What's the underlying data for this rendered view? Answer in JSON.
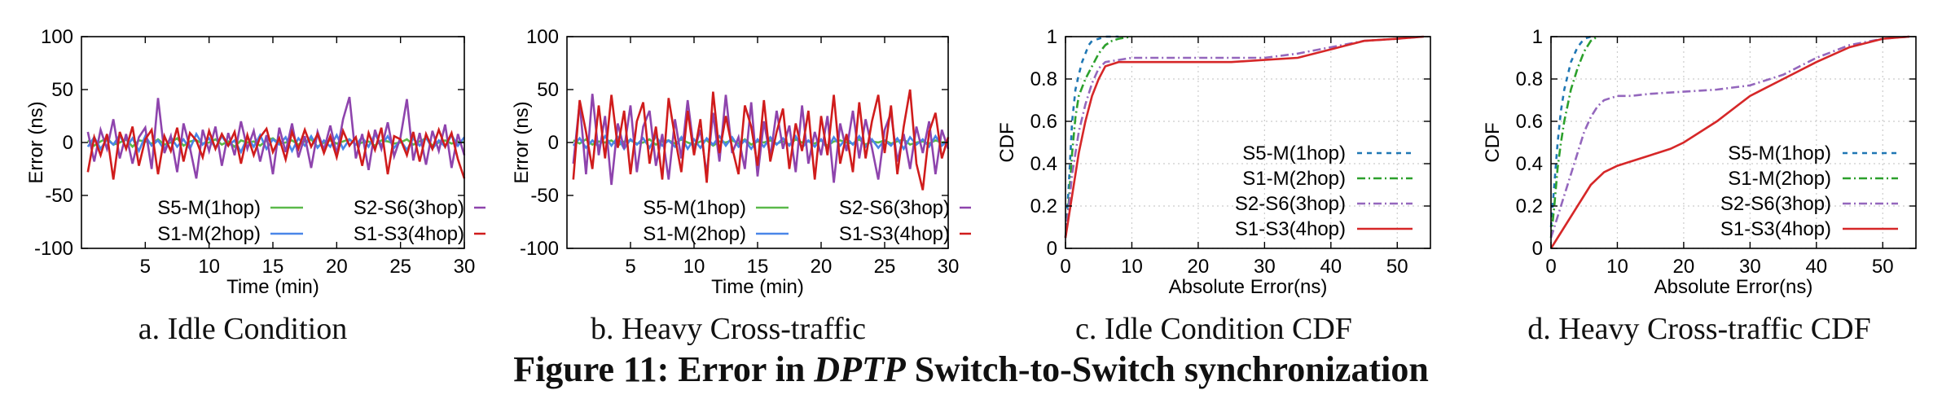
{
  "figure": {
    "label": "Figure 11:",
    "prefix": "Error in",
    "emph": "DPTP",
    "suffix": "Switch-to-Switch synchronization"
  },
  "colors": {
    "S5-M(1hop)": "#1f77b4",
    "S1-M(2hop)": "#2ca02c",
    "S2-S6(3hop)": "#9467bd",
    "S1-S3(4hop)": "#d62728",
    "ts_S5M": "#5ab94a",
    "ts_S1M": "#4a86e8",
    "ts_S2S6": "#8e44ad",
    "ts_S1S3": "#d01c1c"
  },
  "chart_data": [
    {
      "type": "line",
      "caption": "a. Idle Condition",
      "xlabel": "Time (min)",
      "ylabel": "Error (ns)",
      "xlim": [
        0,
        30
      ],
      "ylim": [
        -100,
        100
      ],
      "xticks": [
        5,
        10,
        15,
        20,
        25,
        30
      ],
      "yticks": [
        -100,
        -50,
        0,
        50,
        100
      ],
      "grid": false,
      "legend_position": "bottom",
      "legend_columns": 2,
      "x": [
        0.5,
        1,
        1.5,
        2,
        2.5,
        3,
        3.5,
        4,
        4.5,
        5,
        5.5,
        6,
        6.5,
        7,
        7.5,
        8,
        8.5,
        9,
        9.5,
        10,
        10.5,
        11,
        11.5,
        12,
        12.5,
        13,
        13.5,
        14,
        14.5,
        15,
        15.5,
        16,
        16.5,
        17,
        17.5,
        18,
        18.5,
        19,
        19.5,
        20,
        20.5,
        21,
        21.5,
        22,
        22.5,
        23,
        23.5,
        24,
        24.5,
        25,
        25.5,
        26,
        26.5,
        27,
        27.5,
        28,
        28.5,
        29,
        29.5,
        30
      ],
      "series": [
        {
          "name": "S5-M(1hop)",
          "values": [
            2,
            -3,
            1,
            4,
            -2,
            0,
            3,
            -4,
            2,
            1,
            -1,
            3,
            -2,
            0,
            4,
            -3,
            1,
            2,
            -1,
            0,
            3,
            -2,
            1,
            -4,
            2,
            0,
            1,
            -3,
            2,
            4,
            -1,
            0,
            2,
            -2,
            1,
            3,
            -4,
            0,
            2,
            -1,
            1,
            3,
            -2,
            0,
            1,
            -3,
            2,
            1,
            -1,
            0,
            3,
            -2,
            1,
            4,
            -3,
            0,
            2,
            -1,
            1,
            0
          ]
        },
        {
          "name": "S1-M(2hop)",
          "values": [
            -4,
            5,
            -6,
            3,
            -2,
            7,
            -5,
            4,
            -8,
            6,
            -3,
            2,
            -7,
            5,
            -4,
            3,
            -6,
            8,
            -2,
            4,
            -5,
            6,
            -3,
            2,
            -9,
            5,
            -4,
            7,
            -6,
            3,
            -2,
            5,
            -8,
            4,
            -3,
            6,
            -5,
            2,
            -4,
            7,
            -6,
            3,
            -2,
            5,
            -4,
            8,
            -3,
            6,
            -5,
            2,
            -7,
            4,
            -3,
            5,
            -6,
            2,
            -4,
            7,
            -3,
            5
          ]
        },
        {
          "name": "S2-S6(3hop)",
          "values": [
            10,
            -18,
            12,
            -6,
            22,
            -15,
            8,
            -20,
            5,
            14,
            -25,
            42,
            -10,
            6,
            -28,
            18,
            -5,
            -34,
            12,
            -8,
            15,
            -22,
            9,
            -12,
            20,
            -6,
            11,
            -18,
            7,
            -30,
            14,
            -9,
            18,
            -14,
            6,
            -24,
            10,
            -7,
            16,
            -11,
            22,
            43,
            -15,
            8,
            -26,
            12,
            -6,
            19,
            -13,
            5,
            41,
            -17,
            9,
            -21,
            11,
            -8,
            17,
            -24,
            8,
            -12
          ]
        },
        {
          "name": "S1-S3(4hop)",
          "values": [
            -28,
            5,
            -12,
            8,
            -35,
            10,
            -6,
            15,
            -22,
            3,
            12,
            -30,
            6,
            -8,
            14,
            -18,
            9,
            2,
            -14,
            11,
            -6,
            8,
            -3,
            10,
            -20,
            7,
            -12,
            5,
            13,
            -9,
            4,
            -16,
            10,
            -6,
            12,
            -4,
            8,
            -10,
            6,
            -14,
            11,
            -3,
            5,
            -22,
            9,
            -7,
            14,
            -30,
            6,
            3,
            -12,
            10,
            -18,
            8,
            -6,
            12,
            -4,
            9,
            -16,
            -34
          ]
        }
      ]
    },
    {
      "type": "line",
      "caption": "b. Heavy Cross-traffic",
      "xlabel": "Time (min)",
      "ylabel": "Error (ns)",
      "xlim": [
        0,
        30
      ],
      "ylim": [
        -100,
        100
      ],
      "xticks": [
        5,
        10,
        15,
        20,
        25,
        30
      ],
      "yticks": [
        -100,
        -50,
        0,
        50,
        100
      ],
      "grid": false,
      "legend_position": "bottom",
      "legend_columns": 2,
      "x": [
        0.5,
        1,
        1.5,
        2,
        2.5,
        3,
        3.5,
        4,
        4.5,
        5,
        5.5,
        6,
        6.5,
        7,
        7.5,
        8,
        8.5,
        9,
        9.5,
        10,
        10.5,
        11,
        11.5,
        12,
        12.5,
        13,
        13.5,
        14,
        14.5,
        15,
        15.5,
        16,
        16.5,
        17,
        17.5,
        18,
        18.5,
        19,
        19.5,
        20,
        20.5,
        21,
        21.5,
        22,
        22.5,
        23,
        23.5,
        24,
        24.5,
        25,
        25.5,
        26,
        26.5,
        27,
        27.5,
        28,
        28.5,
        29,
        29.5,
        30
      ],
      "series": [
        {
          "name": "S5-M(1hop)",
          "values": [
            2,
            -1,
            3,
            -2,
            1,
            0,
            2,
            -3,
            1,
            2,
            -1,
            0,
            3,
            -2,
            1,
            2,
            -1,
            3,
            0,
            -2,
            1,
            2,
            -3,
            1,
            0,
            2,
            -1,
            3,
            -2,
            1,
            0,
            2,
            -1,
            1,
            -2,
            3,
            0,
            1,
            -1,
            2,
            -3,
            1,
            2,
            0,
            -1,
            3,
            -2,
            1,
            0,
            2,
            -1,
            1,
            3,
            -2,
            0,
            1,
            -1,
            2,
            0,
            1
          ]
        },
        {
          "name": "S1-M(2hop)",
          "values": [
            -3,
            4,
            -5,
            2,
            -4,
            6,
            -3,
            5,
            -6,
            3,
            -2,
            4,
            -5,
            6,
            -3,
            2,
            -4,
            5,
            -6,
            3,
            -5,
            4,
            -2,
            6,
            -3,
            5,
            -4,
            2,
            -6,
            3,
            -4,
            5,
            -2,
            4,
            -3,
            6,
            -5,
            2,
            -4,
            3,
            -6,
            5,
            -3,
            4,
            -2,
            6,
            -4,
            3,
            -5,
            2,
            -3,
            4,
            -6,
            5,
            -2,
            3,
            -4,
            6,
            -3,
            2
          ]
        },
        {
          "name": "S2-S6(3hop)",
          "values": [
            -20,
            38,
            -30,
            46,
            -12,
            25,
            -40,
            18,
            -6,
            35,
            -28,
            15,
            30,
            -22,
            8,
            -35,
            22,
            -15,
            40,
            -8,
            12,
            -30,
            28,
            -18,
            45,
            -10,
            5,
            -25,
            38,
            -32,
            20,
            -14,
            30,
            -6,
            16,
            -28,
            35,
            -20,
            10,
            -12,
            25,
            -38,
            18,
            -8,
            30,
            -15,
            22,
            -5,
            -35,
            12,
            28,
            -18,
            8,
            -25,
            15,
            -10,
            20,
            -30,
            12,
            -6
          ]
        },
        {
          "name": "S1-S3(4hop)",
          "values": [
            -35,
            40,
            10,
            -25,
            35,
            -15,
            45,
            -5,
            30,
            -30,
            20,
            38,
            -20,
            15,
            -35,
            42,
            5,
            -28,
            30,
            -12,
            22,
            -38,
            48,
            -10,
            25,
            -5,
            -30,
            35,
            15,
            -22,
            40,
            -18,
            10,
            32,
            -25,
            18,
            -8,
            30,
            -35,
            25,
            -12,
            45,
            -20,
            8,
            -28,
            38,
            -15,
            20,
            45,
            -10,
            35,
            -30,
            15,
            50,
            -20,
            -45,
            10,
            28,
            -15,
            5
          ]
        }
      ]
    },
    {
      "type": "line",
      "caption": "c. Idle Condition CDF",
      "xlabel": "Absolute Error(ns)",
      "ylabel": "CDF",
      "xlim": [
        0,
        55
      ],
      "ylim": [
        0,
        1
      ],
      "xticks": [
        0,
        10,
        20,
        30,
        40,
        50
      ],
      "yticks": [
        0,
        0.2,
        0.4,
        0.6,
        0.8,
        1
      ],
      "grid": true,
      "legend_position": "right",
      "legend_columns": 1,
      "series": [
        {
          "name": "S5-M(1hop)",
          "x": [
            0,
            0.5,
            1,
            1.5,
            2,
            2.5,
            3,
            3.5,
            4,
            5,
            6,
            8
          ],
          "values": [
            0.05,
            0.3,
            0.6,
            0.75,
            0.82,
            0.88,
            0.92,
            0.96,
            0.98,
            0.99,
            1.0,
            1.0
          ]
        },
        {
          "name": "S1-M(2hop)",
          "x": [
            0,
            0.5,
            1,
            1.5,
            2,
            3,
            4,
            5,
            6,
            7,
            8,
            10
          ],
          "values": [
            0.05,
            0.22,
            0.45,
            0.62,
            0.72,
            0.8,
            0.86,
            0.92,
            0.96,
            0.98,
            0.99,
            1.0
          ]
        },
        {
          "name": "S2-S6(3hop)",
          "x": [
            0,
            0.5,
            1,
            1.5,
            2,
            3,
            4,
            5,
            6,
            8,
            10,
            15,
            20,
            25,
            30,
            35,
            40,
            45,
            50,
            54
          ],
          "values": [
            0.05,
            0.2,
            0.35,
            0.45,
            0.55,
            0.68,
            0.78,
            0.85,
            0.88,
            0.89,
            0.9,
            0.9,
            0.9,
            0.9,
            0.9,
            0.92,
            0.95,
            0.98,
            0.99,
            1.0
          ]
        },
        {
          "name": "S1-S3(4hop)",
          "x": [
            0,
            0.5,
            1,
            1.5,
            2,
            3,
            4,
            5,
            6,
            8,
            10,
            15,
            20,
            25,
            30,
            35,
            40,
            45,
            50,
            54
          ],
          "values": [
            0.05,
            0.15,
            0.25,
            0.35,
            0.45,
            0.6,
            0.72,
            0.8,
            0.86,
            0.88,
            0.88,
            0.88,
            0.88,
            0.88,
            0.89,
            0.9,
            0.94,
            0.98,
            0.99,
            1.0
          ]
        }
      ]
    },
    {
      "type": "line",
      "caption": "d. Heavy Cross-traffic CDF",
      "xlabel": "Absolute Error(ns)",
      "ylabel": "CDF",
      "xlim": [
        0,
        55
      ],
      "ylim": [
        0,
        1
      ],
      "xticks": [
        0,
        10,
        20,
        30,
        40,
        50
      ],
      "yticks": [
        0,
        0.2,
        0.4,
        0.6,
        0.8,
        1
      ],
      "grid": true,
      "legend_position": "right",
      "legend_columns": 1,
      "series": [
        {
          "name": "S5-M(1hop)",
          "x": [
            0,
            0.5,
            1,
            1.5,
            2,
            3,
            4,
            5,
            6
          ],
          "values": [
            0.1,
            0.3,
            0.5,
            0.65,
            0.75,
            0.88,
            0.95,
            0.99,
            1.0
          ]
        },
        {
          "name": "S1-M(2hop)",
          "x": [
            0,
            0.5,
            1,
            1.5,
            2,
            3,
            4,
            5,
            6,
            7
          ],
          "values": [
            0.05,
            0.2,
            0.38,
            0.5,
            0.6,
            0.75,
            0.85,
            0.93,
            0.98,
            1.0
          ]
        },
        {
          "name": "S2-S6(3hop)",
          "x": [
            0,
            1,
            2,
            3,
            4,
            5,
            6,
            7,
            8,
            9,
            10,
            12,
            15,
            20,
            25,
            30,
            35,
            40,
            45,
            50,
            54
          ],
          "values": [
            0.05,
            0.15,
            0.25,
            0.35,
            0.45,
            0.55,
            0.62,
            0.67,
            0.7,
            0.71,
            0.72,
            0.72,
            0.73,
            0.74,
            0.75,
            0.77,
            0.82,
            0.9,
            0.96,
            0.99,
            1.0
          ]
        },
        {
          "name": "S1-S3(4hop)",
          "x": [
            0,
            1,
            2,
            3,
            4,
            5,
            6,
            7,
            8,
            10,
            12,
            15,
            18,
            20,
            25,
            30,
            35,
            40,
            45,
            50,
            54
          ],
          "values": [
            0.0,
            0.05,
            0.1,
            0.15,
            0.2,
            0.25,
            0.3,
            0.33,
            0.36,
            0.39,
            0.41,
            0.44,
            0.47,
            0.5,
            0.6,
            0.72,
            0.8,
            0.88,
            0.95,
            0.99,
            1.0
          ]
        }
      ]
    }
  ]
}
